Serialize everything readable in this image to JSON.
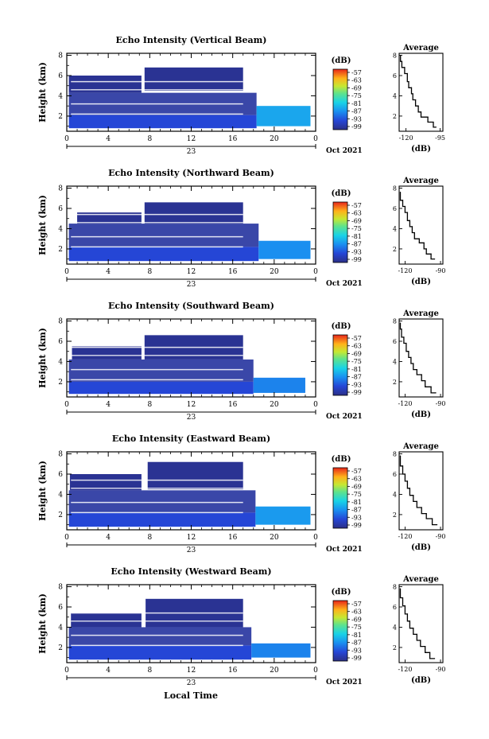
{
  "figure": {
    "xlabel": "Local Time",
    "date_label": "Oct 2021",
    "day_label": "23",
    "panel_ylabel": "Height (km)",
    "cbar_title": "(dB)",
    "profile_title": "Average",
    "profile_xlabel": "(dB)"
  },
  "chart_data": [
    {
      "type": "heatmap",
      "title": "Echo Intensity (Vertical Beam)",
      "xlabel": "Local Time",
      "ylabel": "Height (km)",
      "x_ticks": [
        "0",
        "4",
        "8",
        "12",
        "16",
        "20",
        "0"
      ],
      "y_ticks": [
        "2",
        "4",
        "6",
        "8"
      ],
      "xlim": [
        0,
        24
      ],
      "ylim": [
        0.5,
        8.2
      ],
      "colorbar": {
        "label": "(dB)",
        "ticks": [
          "-57",
          "-63",
          "-69",
          "-75",
          "-81",
          "-87",
          "-93",
          "-99"
        ]
      },
      "layers": [
        {
          "x0": 0.2,
          "x1": 18.3,
          "y0": 0.8,
          "y1": 2.1,
          "value": -93
        },
        {
          "x0": 0.2,
          "x1": 18.3,
          "y0": 2.1,
          "y1": 4.3,
          "value": -97
        },
        {
          "x0": 0.2,
          "x1": 7.2,
          "y0": 4.3,
          "y1": 6.0,
          "value": -98
        },
        {
          "x0": 7.5,
          "x1": 17.0,
          "y0": 4.5,
          "y1": 6.8,
          "value": -98
        },
        {
          "x0": 18.3,
          "x1": 23.5,
          "y0": 1.0,
          "y1": 3.0,
          "value": -85
        }
      ],
      "profile": {
        "title": "Average",
        "xlabel": "(dB)",
        "x_ticks": [
          "-120",
          "-95"
        ],
        "xlim": [
          -125,
          -93
        ],
        "y_ticks": [
          "2",
          "4",
          "6",
          "8"
        ],
        "points": [
          [
            -98,
            0.9
          ],
          [
            -100,
            1.4
          ],
          [
            -104,
            1.9
          ],
          [
            -109,
            2.4
          ],
          [
            -111,
            3.0
          ],
          [
            -113,
            3.6
          ],
          [
            -115,
            4.2
          ],
          [
            -116,
            4.8
          ],
          [
            -118,
            5.4
          ],
          [
            -119,
            6.2
          ],
          [
            -121,
            6.8
          ],
          [
            -123,
            7.4
          ],
          [
            -124,
            8.0
          ]
        ]
      }
    },
    {
      "type": "heatmap",
      "title": "Echo Intensity (Northward Beam)",
      "xlabel": "Local Time",
      "ylabel": "Height (km)",
      "x_ticks": [
        "0",
        "4",
        "8",
        "12",
        "16",
        "20",
        "0"
      ],
      "y_ticks": [
        "2",
        "4",
        "6",
        "8"
      ],
      "xlim": [
        0,
        24
      ],
      "ylim": [
        0.5,
        8.2
      ],
      "colorbar": {
        "label": "(dB)",
        "ticks": [
          "-57",
          "-63",
          "-69",
          "-75",
          "-81",
          "-87",
          "-93",
          "-99"
        ]
      },
      "layers": [
        {
          "x0": 0.2,
          "x1": 18.5,
          "y0": 0.8,
          "y1": 2.2,
          "value": -93
        },
        {
          "x0": 0.2,
          "x1": 18.5,
          "y0": 2.2,
          "y1": 4.5,
          "value": -97
        },
        {
          "x0": 1.0,
          "x1": 7.2,
          "y0": 4.5,
          "y1": 5.6,
          "value": -98
        },
        {
          "x0": 7.5,
          "x1": 17.0,
          "y0": 4.5,
          "y1": 6.6,
          "value": -98
        },
        {
          "x0": 18.5,
          "x1": 23.5,
          "y0": 1.0,
          "y1": 2.8,
          "value": -87
        }
      ],
      "profile": {
        "title": "Average",
        "xlabel": "(dB)",
        "x_ticks": [
          "-120",
          "-90"
        ],
        "xlim": [
          -125,
          -88
        ],
        "y_ticks": [
          "2",
          "4",
          "6",
          "8"
        ],
        "points": [
          [
            -95,
            1.0
          ],
          [
            -98,
            1.5
          ],
          [
            -102,
            2.0
          ],
          [
            -104,
            2.6
          ],
          [
            -108,
            3.0
          ],
          [
            -112,
            3.6
          ],
          [
            -114,
            4.2
          ],
          [
            -116,
            4.8
          ],
          [
            -118,
            5.6
          ],
          [
            -120,
            6.2
          ],
          [
            -122,
            6.8
          ],
          [
            -124,
            7.6
          ]
        ]
      }
    },
    {
      "type": "heatmap",
      "title": "Echo Intensity (Southward Beam)",
      "xlabel": "Local Time",
      "ylabel": "Height (km)",
      "x_ticks": [
        "0",
        "4",
        "8",
        "12",
        "16",
        "20",
        "0"
      ],
      "y_ticks": [
        "2",
        "4",
        "6",
        "8"
      ],
      "xlim": [
        0,
        24
      ],
      "ylim": [
        0.5,
        8.2
      ],
      "colorbar": {
        "label": "(dB)",
        "ticks": [
          "-57",
          "-63",
          "-69",
          "-75",
          "-81",
          "-87",
          "-93",
          "-99"
        ]
      },
      "layers": [
        {
          "x0": 0.2,
          "x1": 18.0,
          "y0": 0.8,
          "y1": 2.0,
          "value": -93
        },
        {
          "x0": 0.2,
          "x1": 18.0,
          "y0": 2.0,
          "y1": 4.2,
          "value": -97
        },
        {
          "x0": 0.5,
          "x1": 7.2,
          "y0": 4.2,
          "y1": 5.5,
          "value": -98
        },
        {
          "x0": 7.5,
          "x1": 17.0,
          "y0": 4.2,
          "y1": 6.6,
          "value": -98
        },
        {
          "x0": 18.0,
          "x1": 23.0,
          "y0": 0.9,
          "y1": 2.4,
          "value": -88
        }
      ],
      "profile": {
        "title": "Average",
        "xlabel": "(dB)",
        "x_ticks": [
          "-120",
          "-90"
        ],
        "xlim": [
          -125,
          -88
        ],
        "y_ticks": [
          "2",
          "4",
          "6",
          "8"
        ],
        "points": [
          [
            -94,
            0.9
          ],
          [
            -98,
            1.5
          ],
          [
            -103,
            2.1
          ],
          [
            -106,
            2.7
          ],
          [
            -110,
            3.2
          ],
          [
            -113,
            3.8
          ],
          [
            -115,
            4.4
          ],
          [
            -117,
            5.0
          ],
          [
            -119,
            5.8
          ],
          [
            -121,
            6.4
          ],
          [
            -123,
            7.2
          ],
          [
            -124,
            7.8
          ]
        ]
      }
    },
    {
      "type": "heatmap",
      "title": "Echo Intensity (Eastward Beam)",
      "xlabel": "Local Time",
      "ylabel": "Height (km)",
      "x_ticks": [
        "0",
        "4",
        "8",
        "12",
        "16",
        "20",
        "0"
      ],
      "y_ticks": [
        "2",
        "4",
        "6",
        "8"
      ],
      "xlim": [
        0,
        24
      ],
      "ylim": [
        0.5,
        8.2
      ],
      "colorbar": {
        "label": "(dB)",
        "ticks": [
          "-57",
          "-63",
          "-69",
          "-75",
          "-81",
          "-87",
          "-93",
          "-99"
        ]
      },
      "layers": [
        {
          "x0": 0.2,
          "x1": 18.2,
          "y0": 0.8,
          "y1": 2.2,
          "value": -93
        },
        {
          "x0": 0.2,
          "x1": 18.2,
          "y0": 2.2,
          "y1": 4.4,
          "value": -97
        },
        {
          "x0": 0.3,
          "x1": 7.2,
          "y0": 4.4,
          "y1": 6.0,
          "value": -98
        },
        {
          "x0": 7.8,
          "x1": 17.0,
          "y0": 4.5,
          "y1": 7.2,
          "value": -98
        },
        {
          "x0": 18.2,
          "x1": 23.5,
          "y0": 1.0,
          "y1": 2.8,
          "value": -86
        }
      ],
      "profile": {
        "title": "Average",
        "xlabel": "(dB)",
        "x_ticks": [
          "-120",
          "-90"
        ],
        "xlim": [
          -125,
          -88
        ],
        "y_ticks": [
          "2",
          "4",
          "6",
          "8"
        ],
        "points": [
          [
            -93,
            1.0
          ],
          [
            -97,
            1.6
          ],
          [
            -102,
            2.1
          ],
          [
            -106,
            2.7
          ],
          [
            -110,
            3.3
          ],
          [
            -113,
            3.9
          ],
          [
            -116,
            4.6
          ],
          [
            -118,
            5.3
          ],
          [
            -120,
            6.0
          ],
          [
            -122,
            6.8
          ],
          [
            -124,
            7.8
          ]
        ]
      }
    },
    {
      "type": "heatmap",
      "title": "Echo Intensity (Westward Beam)",
      "xlabel": "Local Time",
      "ylabel": "Height (km)",
      "x_ticks": [
        "0",
        "4",
        "8",
        "12",
        "16",
        "20",
        "0"
      ],
      "y_ticks": [
        "2",
        "4",
        "6",
        "8"
      ],
      "xlim": [
        0,
        24
      ],
      "ylim": [
        0.5,
        8.2
      ],
      "colorbar": {
        "label": "(dB)",
        "ticks": [
          "-57",
          "-63",
          "-69",
          "-75",
          "-81",
          "-87",
          "-93",
          "-99"
        ]
      },
      "layers": [
        {
          "x0": 0.2,
          "x1": 17.8,
          "y0": 0.8,
          "y1": 2.2,
          "value": -93
        },
        {
          "x0": 0.2,
          "x1": 17.8,
          "y0": 2.2,
          "y1": 4.0,
          "value": -97
        },
        {
          "x0": 0.4,
          "x1": 7.2,
          "y0": 4.0,
          "y1": 5.4,
          "value": -98
        },
        {
          "x0": 7.6,
          "x1": 17.0,
          "y0": 4.0,
          "y1": 6.8,
          "value": -98
        },
        {
          "x0": 17.8,
          "x1": 23.5,
          "y0": 1.0,
          "y1": 2.4,
          "value": -88
        }
      ],
      "profile": {
        "title": "Average",
        "xlabel": "(dB)",
        "x_ticks": [
          "-120",
          "-90"
        ],
        "xlim": [
          -125,
          -88
        ],
        "y_ticks": [
          "2",
          "4",
          "6",
          "8"
        ],
        "points": [
          [
            -95,
            0.9
          ],
          [
            -99,
            1.5
          ],
          [
            -103,
            2.1
          ],
          [
            -107,
            2.7
          ],
          [
            -110,
            3.3
          ],
          [
            -113,
            3.9
          ],
          [
            -116,
            4.6
          ],
          [
            -118,
            5.3
          ],
          [
            -120,
            6.1
          ],
          [
            -122,
            6.9
          ],
          [
            -124,
            7.8
          ]
        ]
      }
    }
  ]
}
